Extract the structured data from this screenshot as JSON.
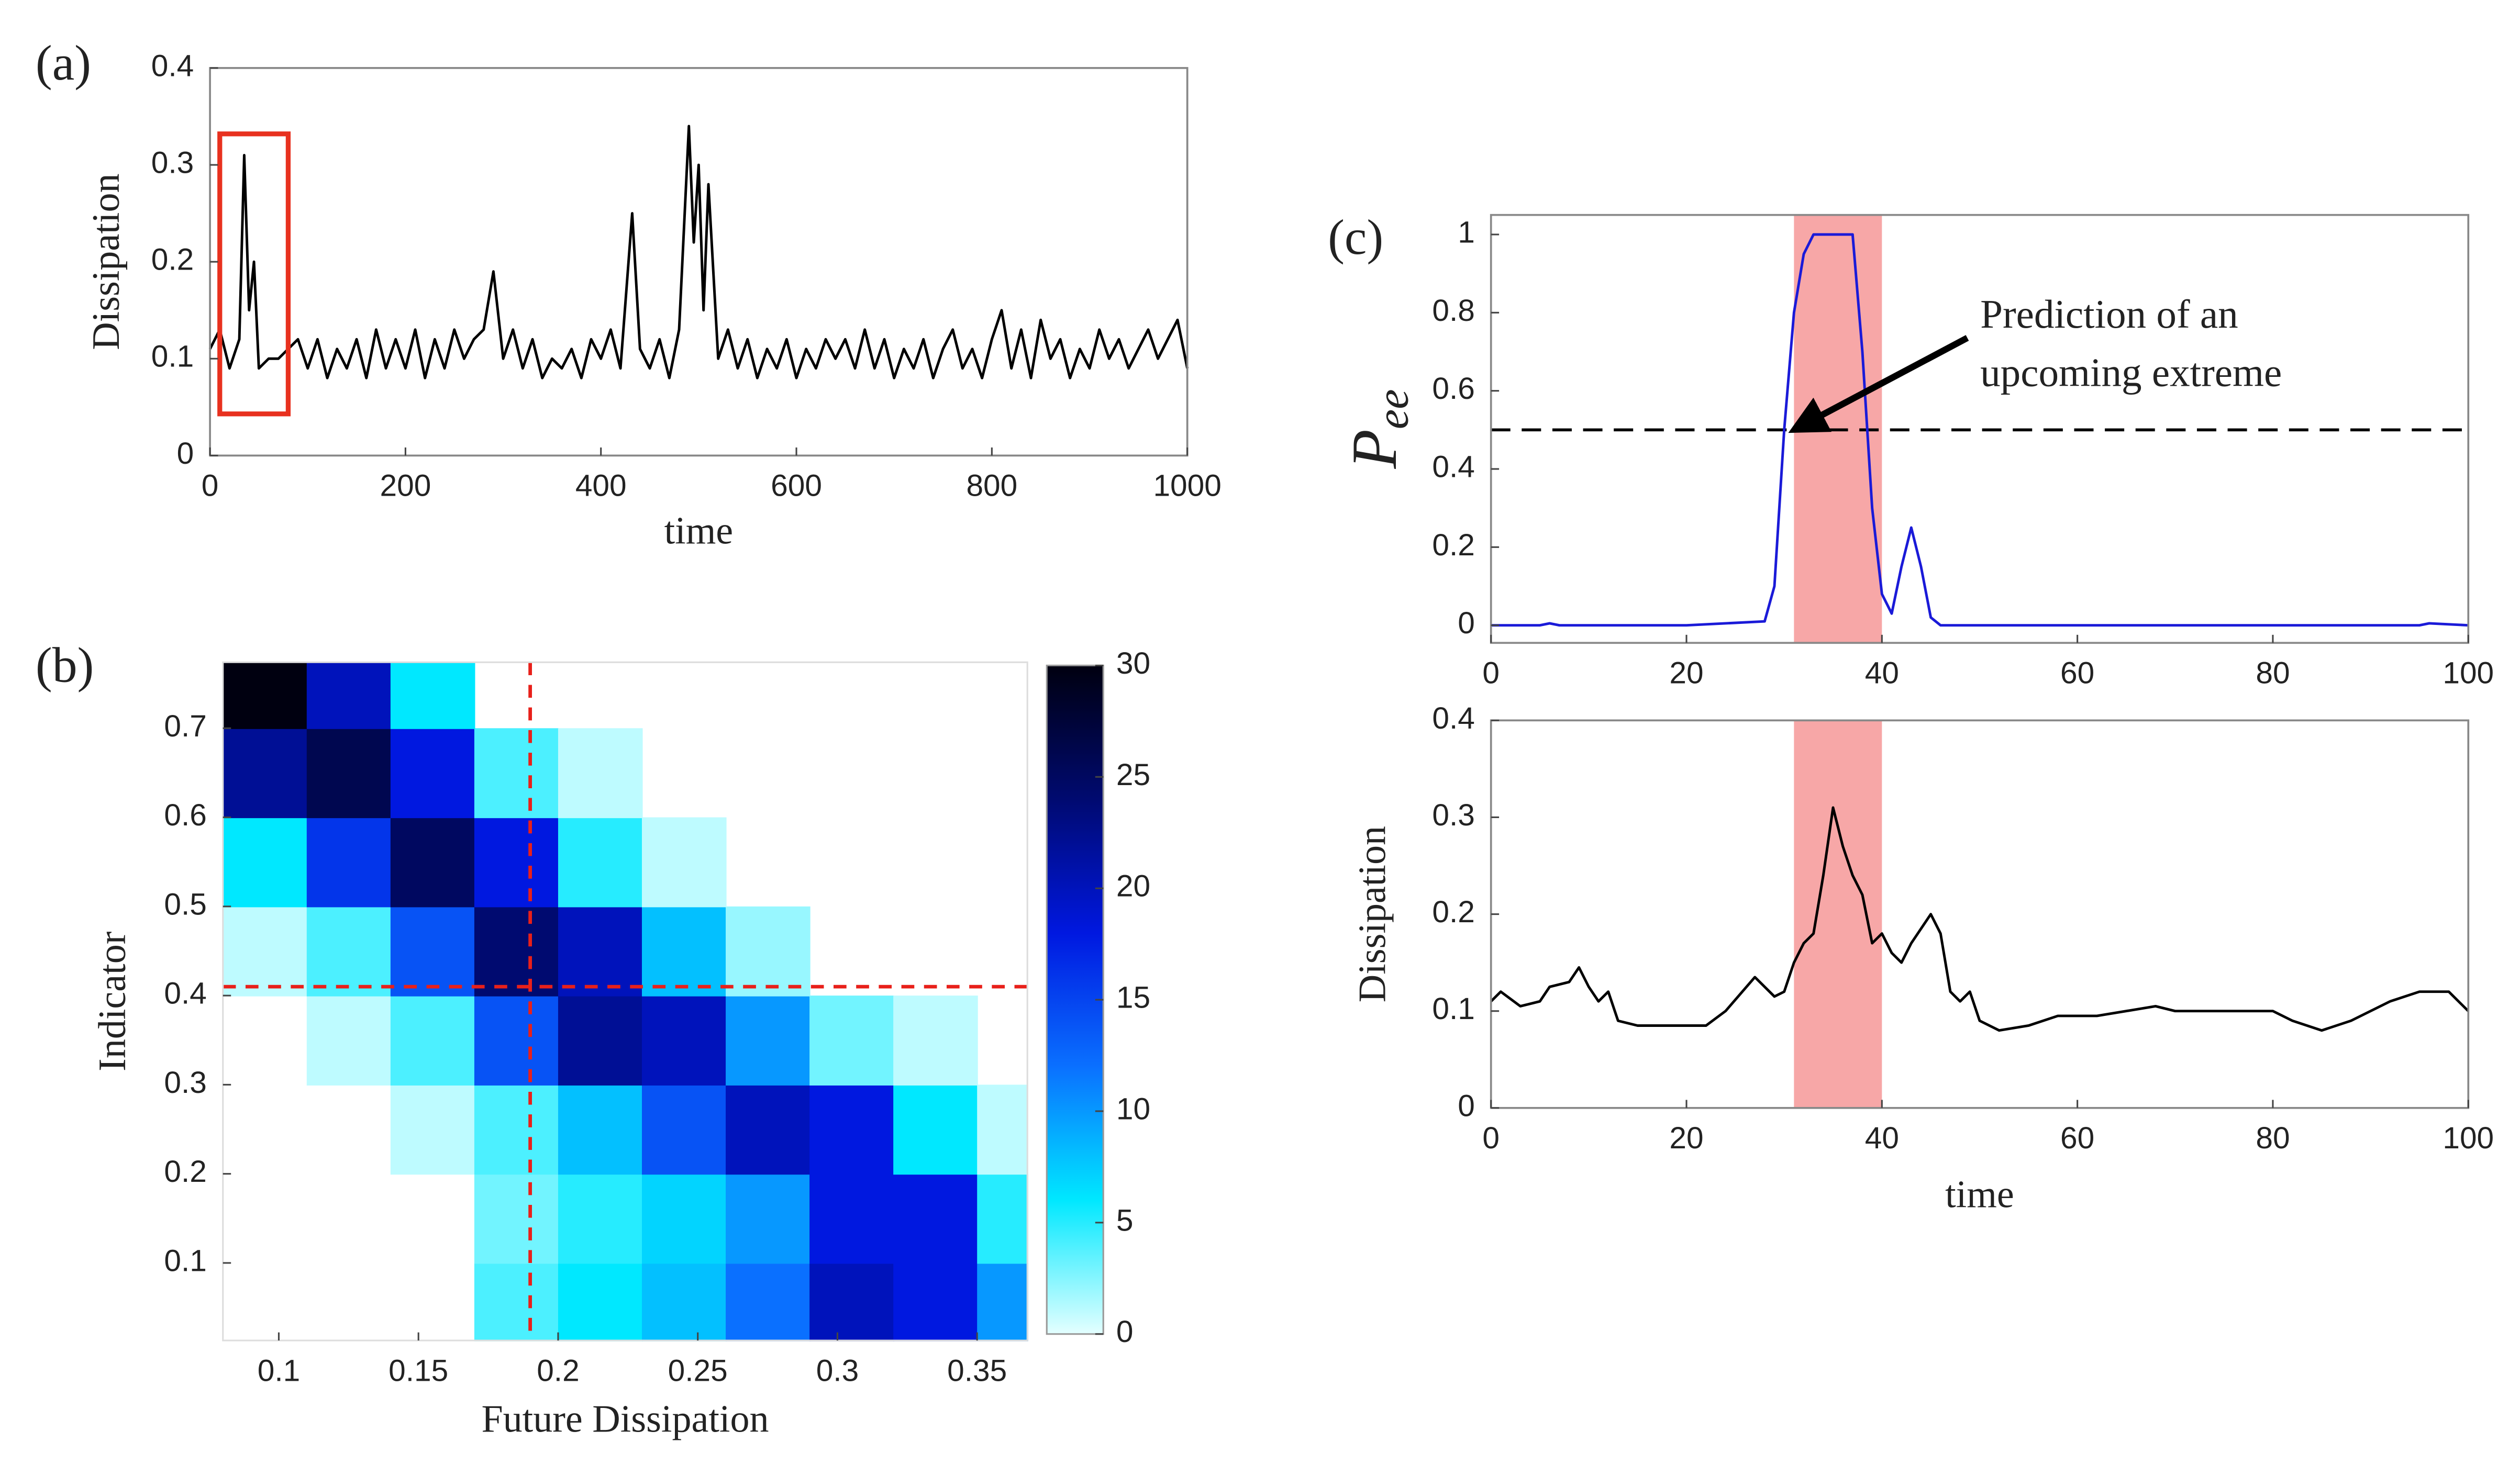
{
  "chart_data": [
    {
      "type": "line",
      "label": "(a)",
      "ylabel": "Dissipation",
      "xlabel": "time",
      "color": "#000000",
      "x": [
        0,
        10,
        20,
        30,
        35,
        40,
        45,
        50,
        60,
        70,
        80,
        90,
        100,
        110,
        120,
        130,
        140,
        150,
        160,
        170,
        180,
        190,
        200,
        210,
        220,
        230,
        240,
        250,
        260,
        270,
        280,
        290,
        300,
        310,
        320,
        330,
        340,
        350,
        360,
        370,
        380,
        390,
        400,
        410,
        420,
        432,
        440,
        450,
        460,
        470,
        480,
        490,
        495,
        500,
        505,
        510,
        520,
        530,
        540,
        550,
        560,
        570,
        580,
        590,
        600,
        610,
        620,
        630,
        640,
        650,
        660,
        670,
        680,
        690,
        700,
        710,
        720,
        730,
        740,
        750,
        760,
        770,
        780,
        790,
        800,
        810,
        820,
        830,
        840,
        850,
        860,
        870,
        880,
        890,
        900,
        910,
        920,
        930,
        940,
        950,
        960,
        970,
        980,
        990,
        1000
      ],
      "values": [
        0.11,
        0.13,
        0.09,
        0.12,
        0.31,
        0.15,
        0.2,
        0.09,
        0.1,
        0.1,
        0.11,
        0.12,
        0.09,
        0.12,
        0.08,
        0.11,
        0.09,
        0.12,
        0.08,
        0.13,
        0.09,
        0.12,
        0.09,
        0.13,
        0.08,
        0.12,
        0.09,
        0.13,
        0.1,
        0.12,
        0.13,
        0.19,
        0.1,
        0.13,
        0.09,
        0.12,
        0.08,
        0.1,
        0.09,
        0.11,
        0.08,
        0.12,
        0.1,
        0.13,
        0.09,
        0.25,
        0.11,
        0.09,
        0.12,
        0.08,
        0.13,
        0.34,
        0.22,
        0.3,
        0.15,
        0.28,
        0.1,
        0.13,
        0.09,
        0.12,
        0.08,
        0.11,
        0.09,
        0.12,
        0.08,
        0.11,
        0.09,
        0.12,
        0.1,
        0.12,
        0.09,
        0.13,
        0.09,
        0.12,
        0.08,
        0.11,
        0.09,
        0.12,
        0.08,
        0.11,
        0.13,
        0.09,
        0.11,
        0.08,
        0.12,
        0.15,
        0.09,
        0.13,
        0.08,
        0.14,
        0.1,
        0.12,
        0.08,
        0.11,
        0.09,
        0.13,
        0.1,
        0.12,
        0.09,
        0.11,
        0.13,
        0.1,
        0.12,
        0.14,
        0.09
      ],
      "xlim": [
        0,
        1000
      ],
      "ylim": [
        0,
        0.4
      ],
      "xticks": [
        0,
        200,
        400,
        600,
        800,
        1000
      ],
      "yticks": [
        0,
        0.1,
        0.2,
        0.3,
        0.4
      ],
      "highlight": {
        "x": [
          10,
          80
        ],
        "y": [
          0.043,
          0.332
        ],
        "color": "#e8311f"
      }
    },
    {
      "type": "heatmap",
      "label": "(b)",
      "ylabel": "Indicator",
      "xlabel": "Future Dissipation",
      "xbins": [
        0.08,
        0.11,
        0.14,
        0.17,
        0.2,
        0.23,
        0.26,
        0.29,
        0.32,
        0.35,
        0.368
      ],
      "ybins": [
        0.013,
        0.1,
        0.2,
        0.3,
        0.4,
        0.5,
        0.6,
        0.7,
        0.774
      ],
      "values": [
        [
          null,
          null,
          null,
          4,
          6,
          8,
          12,
          20,
          18,
          10
        ],
        [
          null,
          null,
          null,
          3,
          5,
          7,
          10,
          18,
          18,
          5
        ],
        [
          null,
          null,
          1,
          4,
          8,
          14,
          20,
          18,
          6,
          1
        ],
        [
          null,
          1,
          4,
          14,
          22,
          20,
          10,
          3,
          1,
          null
        ],
        [
          1,
          4,
          14,
          24,
          20,
          8,
          2,
          null,
          null,
          null
        ],
        [
          6,
          16,
          25,
          18,
          5,
          1,
          null,
          null,
          null,
          null
        ],
        [
          22,
          26,
          18,
          4,
          1,
          null,
          null,
          null,
          null,
          null
        ],
        [
          30,
          20,
          6,
          null,
          null,
          null,
          null,
          null,
          null,
          null
        ]
      ],
      "xlim": [
        0.08,
        0.368
      ],
      "ylim": [
        0.013,
        0.774
      ],
      "xticks": [
        0.1,
        0.15,
        0.2,
        0.25,
        0.3,
        0.35
      ],
      "yticks": [
        0.1,
        0.2,
        0.3,
        0.4,
        0.5,
        0.6,
        0.7
      ],
      "crosshair": {
        "x": 0.19,
        "y": 0.41,
        "color": "#e8201a"
      },
      "colorbar": {
        "lim": [
          0,
          30
        ],
        "ticks": [
          0,
          5,
          10,
          15,
          20,
          25,
          30
        ],
        "colormap": [
          "#e4ffff",
          "#00e8ff",
          "#0a70ff",
          "#0018e0",
          "#000a70",
          "#000010"
        ]
      }
    },
    {
      "type": "line",
      "label": "(c)",
      "ylabel": [
        "P",
        "ee"
      ],
      "color": "#1a1ad8",
      "x": [
        0,
        5,
        6,
        7,
        10,
        20,
        28,
        29,
        30,
        31,
        32,
        33,
        37,
        38,
        39,
        40,
        41,
        42,
        43,
        44,
        45,
        46,
        50,
        60,
        80,
        95,
        96,
        100
      ],
      "values": [
        0,
        0,
        0.005,
        0,
        0,
        0,
        0.01,
        0.1,
        0.5,
        0.8,
        0.95,
        1,
        1,
        0.7,
        0.3,
        0.08,
        0.03,
        0.15,
        0.25,
        0.15,
        0.02,
        0,
        0,
        0,
        0,
        0,
        0.005,
        0
      ],
      "xlim": [
        0,
        100
      ],
      "ylim": [
        -0.045,
        1.05
      ],
      "xticks": [
        0,
        20,
        40,
        60,
        80,
        100
      ],
      "yticks": [
        0,
        0.2,
        0.4,
        0.6,
        0.8,
        1
      ],
      "shade": {
        "x": [
          31,
          40
        ],
        "color": "#f7a7a7"
      },
      "hline": {
        "y": 0.5,
        "color": "#000000"
      },
      "annotation": {
        "text": [
          "Prediction of an",
          "upcoming extreme"
        ],
        "xy": [
          31,
          0.5
        ],
        "xytext": [
          49.4,
          0.785
        ]
      }
    },
    {
      "type": "line",
      "ylabel": "Dissipation",
      "xlabel": "time",
      "color": "#000000",
      "x": [
        0,
        1,
        3,
        5,
        6,
        8,
        9,
        10,
        11,
        12,
        13,
        15,
        17,
        20,
        22,
        24,
        27,
        29,
        30,
        31,
        32,
        33,
        34,
        35,
        36,
        37,
        38,
        39,
        40,
        41,
        42,
        43,
        45,
        46,
        47,
        48,
        49,
        50,
        52,
        55,
        58,
        62,
        65,
        68,
        70,
        75,
        80,
        82,
        85,
        88,
        92,
        95,
        98,
        100
      ],
      "values": [
        0.11,
        0.12,
        0.105,
        0.11,
        0.125,
        0.13,
        0.145,
        0.125,
        0.11,
        0.12,
        0.09,
        0.085,
        0.085,
        0.085,
        0.085,
        0.1,
        0.135,
        0.115,
        0.12,
        0.15,
        0.17,
        0.18,
        0.24,
        0.31,
        0.27,
        0.24,
        0.22,
        0.17,
        0.18,
        0.16,
        0.15,
        0.17,
        0.2,
        0.18,
        0.12,
        0.11,
        0.12,
        0.09,
        0.08,
        0.085,
        0.095,
        0.095,
        0.1,
        0.105,
        0.1,
        0.1,
        0.1,
        0.09,
        0.08,
        0.09,
        0.11,
        0.12,
        0.12,
        0.1
      ],
      "xlim": [
        0,
        100
      ],
      "ylim": [
        0,
        0.4
      ],
      "xticks": [
        0,
        20,
        40,
        60,
        80,
        100
      ],
      "yticks": [
        0,
        0.1,
        0.2,
        0.3,
        0.4
      ],
      "shade": {
        "x": [
          31,
          40
        ],
        "color": "#f7a7a7"
      }
    }
  ]
}
